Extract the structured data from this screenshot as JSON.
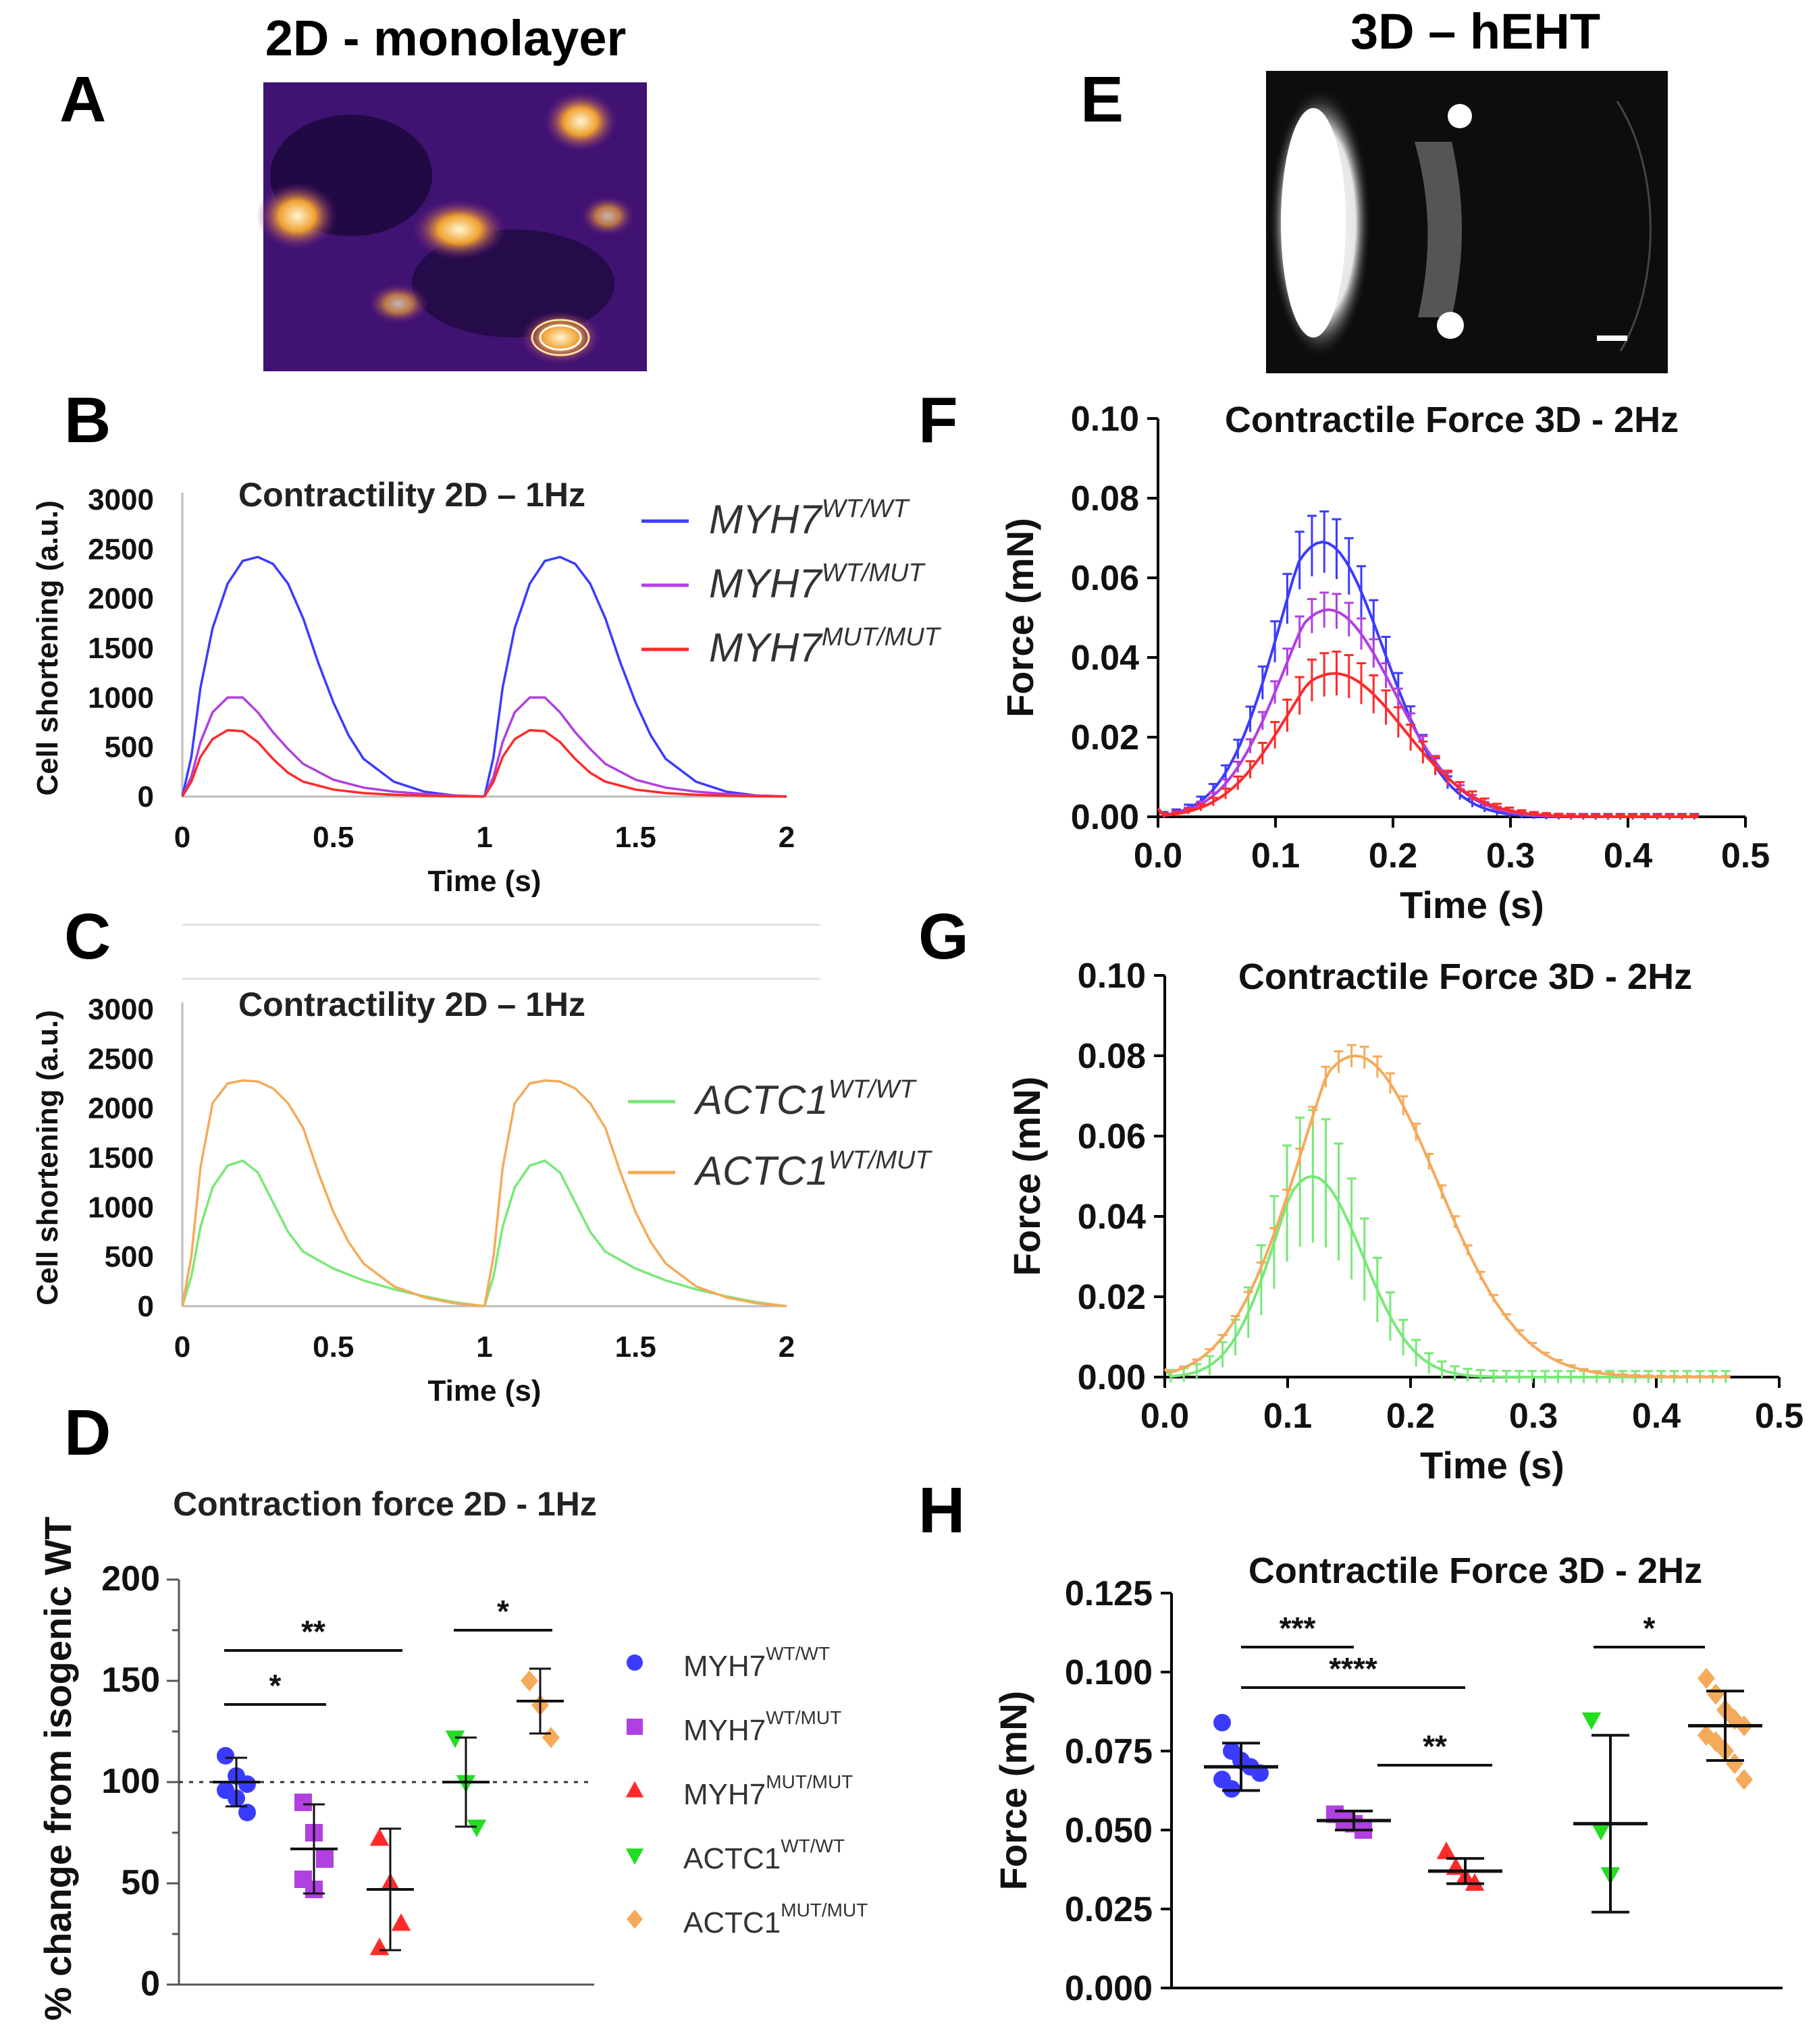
{
  "headers": {
    "left": "2D - monolayer",
    "right": "3D – hEHT"
  },
  "panel_letters": [
    "A",
    "B",
    "C",
    "D",
    "E",
    "F",
    "G",
    "H"
  ],
  "colors": {
    "myh7_wt": "#3b3bff",
    "myh7_het": "#b040e0",
    "myh7_mut": "#ff2a2a",
    "actc1_wt": "#78e878",
    "actc1_mut": "#f5aa5a",
    "green_marker": "#22dd22"
  },
  "chart_data": [
    {
      "panel": "B",
      "type": "line",
      "title": "Contractility 2D – 1Hz",
      "xlabel": "Time (s)",
      "ylabel": "Cell shortening (a.u.)",
      "xlim": [
        0,
        2
      ],
      "ylim": [
        0,
        3000
      ],
      "xticks": [
        "0",
        "0.5",
        "1",
        "1.5",
        "2"
      ],
      "yticks": [
        "0",
        "500",
        "1000",
        "1500",
        "2000",
        "2500",
        "3000"
      ],
      "series": [
        {
          "name": "MYH7",
          "sup": "WT/WT",
          "color": "#3b3bff",
          "x": [
            0,
            0.03,
            0.06,
            0.1,
            0.15,
            0.2,
            0.25,
            0.3,
            0.35,
            0.4,
            0.45,
            0.5,
            0.55,
            0.6,
            0.7,
            0.8,
            0.9,
            1.0
          ],
          "y": [
            0,
            400,
            1100,
            1700,
            2150,
            2380,
            2420,
            2350,
            2150,
            1800,
            1350,
            950,
            620,
            380,
            150,
            50,
            10,
            0
          ]
        },
        {
          "name": "MYH7",
          "sup": "WT/MUT",
          "color": "#b040e0",
          "x": [
            0,
            0.03,
            0.06,
            0.1,
            0.15,
            0.2,
            0.25,
            0.3,
            0.35,
            0.4,
            0.5,
            0.6,
            0.7,
            0.8,
            0.9,
            1.0
          ],
          "y": [
            0,
            200,
            550,
            850,
            1000,
            1000,
            850,
            650,
            480,
            330,
            170,
            90,
            50,
            25,
            10,
            0
          ]
        },
        {
          "name": "MYH7",
          "sup": "MUT/MUT",
          "color": "#ff2a2a",
          "x": [
            0,
            0.03,
            0.06,
            0.1,
            0.15,
            0.2,
            0.25,
            0.3,
            0.35,
            0.4,
            0.5,
            0.6,
            0.7,
            0.8,
            0.9,
            1.0
          ],
          "y": [
            0,
            150,
            400,
            580,
            670,
            660,
            550,
            380,
            240,
            150,
            70,
            35,
            18,
            8,
            3,
            0
          ]
        }
      ],
      "legend": "top-right"
    },
    {
      "panel": "C",
      "type": "line",
      "title": "Contractility 2D – 1Hz",
      "xlabel": "Time (s)",
      "ylabel": "Cell shortening (a.u.)",
      "xlim": [
        0,
        2
      ],
      "ylim": [
        0,
        3000
      ],
      "xticks": [
        "0",
        "0.5",
        "1",
        "1.5",
        "2"
      ],
      "yticks": [
        "0",
        "500",
        "1000",
        "1500",
        "2000",
        "2500",
        "3000"
      ],
      "series": [
        {
          "name": "ACTC1",
          "sup": "WT/WT",
          "color": "#78e878",
          "x": [
            0,
            0.03,
            0.06,
            0.1,
            0.15,
            0.2,
            0.25,
            0.3,
            0.35,
            0.4,
            0.5,
            0.6,
            0.7,
            0.8,
            0.9,
            1.0
          ],
          "y": [
            0,
            300,
            800,
            1200,
            1420,
            1470,
            1350,
            1050,
            750,
            550,
            380,
            260,
            170,
            100,
            40,
            0
          ]
        },
        {
          "name": "ACTC1",
          "sup": "WT/MUT",
          "color": "#f5aa5a",
          "x": [
            0,
            0.03,
            0.06,
            0.1,
            0.15,
            0.2,
            0.25,
            0.3,
            0.35,
            0.4,
            0.45,
            0.5,
            0.55,
            0.6,
            0.7,
            0.8,
            0.9,
            1.0
          ],
          "y": [
            0,
            500,
            1400,
            2050,
            2250,
            2280,
            2270,
            2200,
            2050,
            1800,
            1350,
            950,
            650,
            430,
            200,
            90,
            30,
            0
          ]
        }
      ],
      "legend": "right"
    },
    {
      "panel": "D",
      "type": "scatter",
      "title": "Contraction force 2D - 1Hz",
      "ylabel": "% change from isogenic WT",
      "ylim": [
        0,
        200
      ],
      "yticks": [
        "0",
        "50",
        "100",
        "150",
        "200"
      ],
      "groups": [
        {
          "name": "MYH7",
          "sup": "WT/WT",
          "marker": "circle",
          "color": "#3b3bff",
          "mean": 100,
          "sd": 12,
          "points": [
            113,
            103,
            99,
            96,
            92,
            85
          ]
        },
        {
          "name": "MYH7",
          "sup": "WT/MUT",
          "marker": "square",
          "color": "#b040e0",
          "mean": 67,
          "sd": 22,
          "points": [
            90,
            75,
            62,
            52,
            47
          ]
        },
        {
          "name": "MYH7",
          "sup": "MUT/MUT",
          "marker": "triangle-up",
          "color": "#ff2a2a",
          "mean": 47,
          "sd": 30,
          "points": [
            72,
            50,
            30,
            18
          ]
        },
        {
          "name": "ACTC1",
          "sup": "WT/WT",
          "marker": "triangle-down",
          "color": "#22dd22",
          "mean": 100,
          "sd": 22,
          "points": [
            122,
            100,
            78
          ]
        },
        {
          "name": "ACTC1",
          "sup": "MUT/MUT",
          "marker": "diamond",
          "color": "#f5aa5a",
          "mean": 140,
          "sd": 16,
          "points": [
            150,
            138,
            122
          ]
        }
      ],
      "reference_line": 100,
      "significance": [
        {
          "label": "**",
          "from": 0,
          "to": 2
        },
        {
          "label": "*",
          "from": 0,
          "to": 1
        },
        {
          "label": "*",
          "from": 3,
          "to": 4
        }
      ]
    },
    {
      "panel": "F",
      "type": "line",
      "title": "Contractile Force 3D - 2Hz",
      "xlabel": "Time (s)",
      "ylabel": "Force (mN)",
      "xlim": [
        0,
        0.5
      ],
      "ylim": [
        0,
        0.1
      ],
      "xticks": [
        "0.0",
        "0.1",
        "0.2",
        "0.3",
        "0.4",
        "0.5"
      ],
      "yticks": [
        "0.00",
        "0.02",
        "0.04",
        "0.06",
        "0.08",
        "0.10"
      ],
      "series": [
        {
          "color": "#3b3bff",
          "peak": 0.069,
          "peak_t": 0.14,
          "width": 0.07,
          "err": 0.007
        },
        {
          "color": "#b040e0",
          "peak": 0.052,
          "peak_t": 0.145,
          "width": 0.075,
          "err": 0.004
        },
        {
          "color": "#ff2a2a",
          "peak": 0.036,
          "peak_t": 0.15,
          "width": 0.08,
          "err": 0.005
        }
      ]
    },
    {
      "panel": "G",
      "type": "line",
      "title": "Contractile Force 3D - 2Hz",
      "xlabel": "Time (s)",
      "ylabel": "Force (mN)",
      "xlim": [
        0,
        0.5
      ],
      "ylim": [
        0,
        0.1
      ],
      "xticks": [
        "0.0",
        "0.1",
        "0.2",
        "0.3",
        "0.4",
        "0.5"
      ],
      "yticks": [
        "0.00",
        "0.02",
        "0.04",
        "0.06",
        "0.08",
        "0.10"
      ],
      "series": [
        {
          "color": "#78e878",
          "peak": 0.05,
          "peak_t": 0.12,
          "width": 0.055,
          "err": 0.015
        },
        {
          "color": "#f5aa5a",
          "peak": 0.08,
          "peak_t": 0.155,
          "width": 0.09,
          "err": 0.0025
        }
      ]
    },
    {
      "panel": "H",
      "type": "scatter",
      "title": "Contractile Force 3D - 2Hz",
      "ylabel": "Force (mN)",
      "ylim": [
        0,
        0.125
      ],
      "yticks": [
        "0.000",
        "0.025",
        "0.050",
        "0.075",
        "0.100",
        "0.125"
      ],
      "groups": [
        {
          "color": "#3b3bff",
          "marker": "circle",
          "mean": 0.07,
          "sd": 0.0075,
          "points": [
            0.084,
            0.075,
            0.072,
            0.07,
            0.068,
            0.066,
            0.063
          ]
        },
        {
          "color": "#b040e0",
          "marker": "square",
          "mean": 0.053,
          "sd": 0.003,
          "points": [
            0.055,
            0.053,
            0.052,
            0.05
          ]
        },
        {
          "color": "#ff2a2a",
          "marker": "triangle-up",
          "mean": 0.037,
          "sd": 0.004,
          "points": [
            0.043,
            0.038,
            0.035,
            0.033
          ]
        },
        {
          "color": "#22dd22",
          "marker": "triangle-down",
          "mean": 0.052,
          "sd": 0.028,
          "points": [
            0.085,
            0.05,
            0.036
          ]
        },
        {
          "color": "#f5aa5a",
          "marker": "diamond",
          "mean": 0.083,
          "sd": 0.011,
          "points": [
            0.098,
            0.093,
            0.088,
            0.085,
            0.083,
            0.08,
            0.078,
            0.075,
            0.071,
            0.066
          ]
        }
      ],
      "significance": [
        {
          "label": "***",
          "from": 0,
          "to": 1
        },
        {
          "label": "****",
          "from": 0,
          "to": 2
        },
        {
          "label": "**",
          "from": 1,
          "to": 2
        },
        {
          "label": "*",
          "from": 3,
          "to": 4
        }
      ]
    }
  ]
}
